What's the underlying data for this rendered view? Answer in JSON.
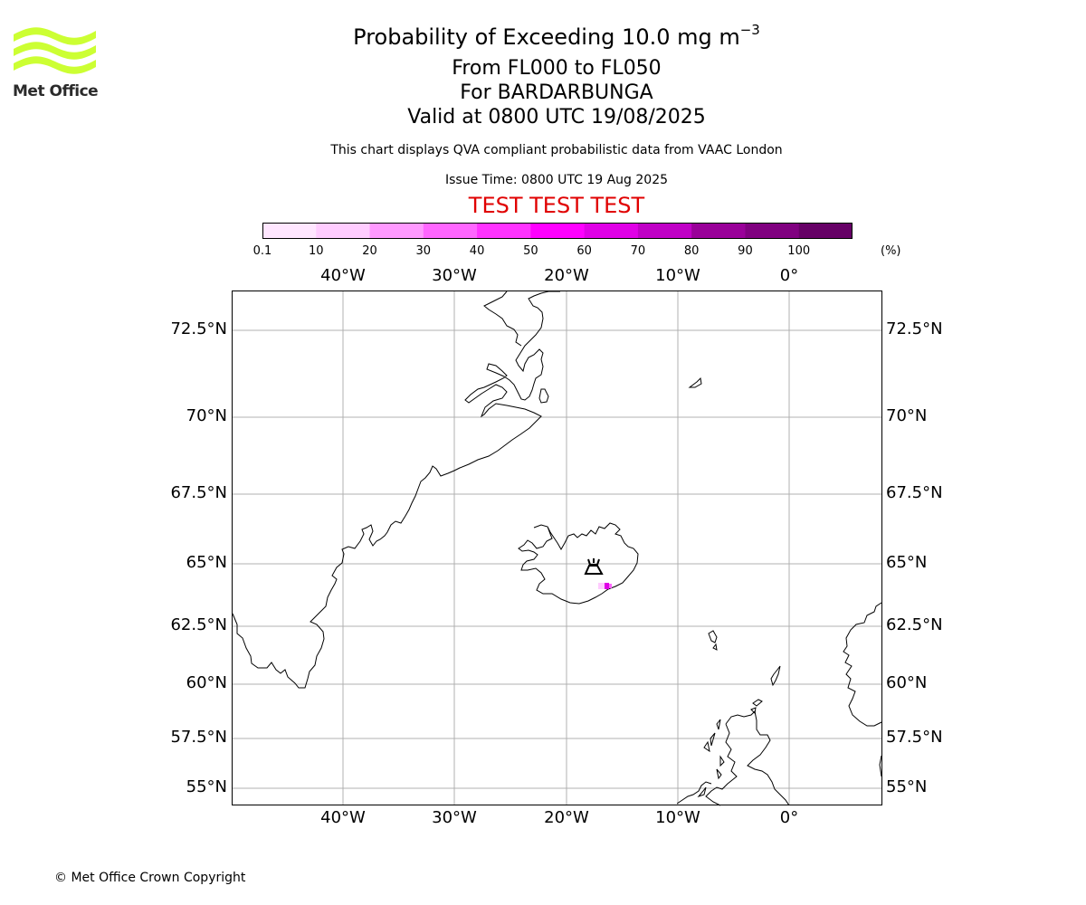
{
  "title": {
    "line1": "Probability of Exceeding 10.0 mg m",
    "line1_sup": "−3",
    "line2": "From FL000 to FL050",
    "line3": "For BARDARBUNGA",
    "line4": "Valid at 0800 UTC 19/08/2025",
    "subtitle": "This chart displays QVA compliant probabilistic data from VAAC London",
    "issue_time": "Issue Time: 0800 UTC 19 Aug 2025",
    "test_banner": "TEST TEST TEST"
  },
  "logo": {
    "text": "Met Office",
    "color": "#ccff33"
  },
  "colorbar": {
    "unit": "(%)",
    "labels": [
      "0.1",
      "10",
      "20",
      "30",
      "40",
      "50",
      "60",
      "70",
      "80",
      "90",
      "100"
    ],
    "colors": [
      "#ffe6ff",
      "#ffccff",
      "#ff99ff",
      "#ff66ff",
      "#ff33ff",
      "#ff00ff",
      "#e000e6",
      "#c000c6",
      "#990099",
      "#800080",
      "#660066"
    ]
  },
  "map": {
    "lon_labels": [
      "40°W",
      "30°W",
      "20°W",
      "10°W",
      "0°"
    ],
    "lat_labels": [
      "72.5°N",
      "70°N",
      "67.5°N",
      "65°N",
      "62.5°N",
      "60°N",
      "57.5°N",
      "55°N"
    ],
    "volcano": "BARDARBUNGA",
    "gridline_color": "#b0b0b0"
  },
  "footer": {
    "copyright": "© Met Office Crown Copyright"
  }
}
